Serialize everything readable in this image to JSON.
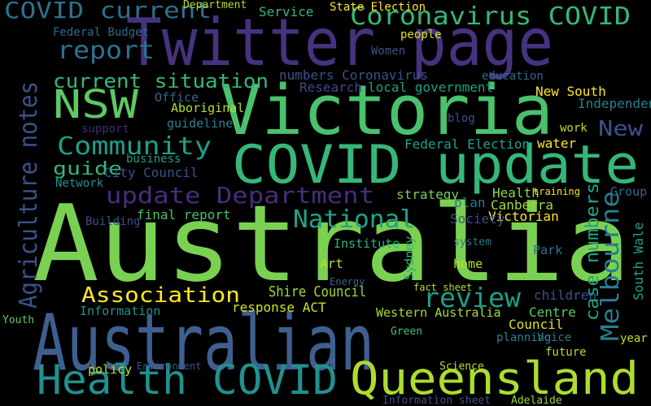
{
  "chart_data": {
    "type": "wordcloud",
    "background": "#000000",
    "words": [
      {
        "text": "Australia",
        "color": "#7ad151"
      },
      {
        "text": "Australian",
        "color": "#3e5f8f"
      },
      {
        "text": "Twitter page",
        "color": "#46327e"
      },
      {
        "text": "Victoria",
        "color": "#4ac16d"
      },
      {
        "text": "COVID update",
        "color": "#35b779"
      },
      {
        "text": "Health COVID",
        "color": "#21918c"
      },
      {
        "text": "Queensland",
        "color": "#addc30"
      },
      {
        "text": "Coronavirus COVID",
        "color": "#35b779"
      },
      {
        "text": "COVID current",
        "color": "#2c728e"
      },
      {
        "text": "report",
        "color": "#2c728e"
      },
      {
        "text": "NSW",
        "color": "#5ec962"
      },
      {
        "text": "current situation",
        "color": "#35b779"
      },
      {
        "text": "Community",
        "color": "#1f9e89"
      },
      {
        "text": "guide",
        "color": "#35b779"
      },
      {
        "text": "update Department",
        "color": "#472d7b"
      },
      {
        "text": "Agriculture notes",
        "color": "#3b528b"
      },
      {
        "text": "National",
        "color": "#20a386"
      },
      {
        "text": "review",
        "color": "#1f9e89"
      },
      {
        "text": "Association",
        "color": "#fde725"
      },
      {
        "text": "Melbourne",
        "color": "#277f8e"
      },
      {
        "text": "case numbers",
        "color": "#20a386"
      },
      {
        "text": "New",
        "color": "#3b528b"
      },
      {
        "text": "South Wale",
        "color": "#1f9e89"
      },
      {
        "text": "Shire Council",
        "color": "#a0da39"
      },
      {
        "text": "Victorian",
        "color": "#fde725"
      },
      {
        "text": "Canberra",
        "color": "#a2da37"
      },
      {
        "text": "Health",
        "color": "#93d741"
      },
      {
        "text": "Society",
        "color": "#3b528b"
      },
      {
        "text": "plan",
        "color": "#2a788e"
      },
      {
        "text": "strategy",
        "color": "#7ad151"
      },
      {
        "text": "Federal Election",
        "color": "#1fa187"
      },
      {
        "text": "water",
        "color": "#fde725"
      },
      {
        "text": "work",
        "color": "#bddf26"
      },
      {
        "text": "Independent",
        "color": "#277f8e"
      },
      {
        "text": "New South",
        "color": "#fde725"
      },
      {
        "text": "education",
        "color": "#31688e"
      },
      {
        "text": "local government",
        "color": "#1f9e89"
      },
      {
        "text": "numbers Coronavirus",
        "color": "#3b528b"
      },
      {
        "text": "Research",
        "color": "#3e4a89"
      },
      {
        "text": "Service",
        "color": "#35b779"
      },
      {
        "text": "Department",
        "color": "#b5de2b"
      },
      {
        "text": "State Election",
        "color": "#fde725"
      },
      {
        "text": "people",
        "color": "#d8e219"
      },
      {
        "text": "Women",
        "color": "#3b528b"
      },
      {
        "text": "Aboriginal",
        "color": "#b5de2b"
      },
      {
        "text": "guideline",
        "color": "#26828e"
      },
      {
        "text": "City Council",
        "color": "#3b528b"
      },
      {
        "text": "business",
        "color": "#1f9e89"
      },
      {
        "text": "final report",
        "color": "#4ac16d"
      },
      {
        "text": "Building",
        "color": "#3e4a89"
      },
      {
        "text": "Federal Budget",
        "color": "#31688e"
      },
      {
        "text": "Network",
        "color": "#21918c"
      },
      {
        "text": "Information",
        "color": "#21918c"
      },
      {
        "text": "policy",
        "color": "#c2df23"
      },
      {
        "text": "Environment",
        "color": "#3b528b"
      },
      {
        "text": "response ACT",
        "color": "#d2e21b"
      },
      {
        "text": "Western Australia",
        "color": "#a8db34"
      },
      {
        "text": "Council",
        "color": "#d5e21a"
      },
      {
        "text": "Centre",
        "color": "#5ec962"
      },
      {
        "text": "planning",
        "color": "#26828e"
      },
      {
        "text": "Voice",
        "color": "#2a788e"
      },
      {
        "text": "future",
        "color": "#b2dd2d"
      },
      {
        "text": "children",
        "color": "#3b528b"
      },
      {
        "text": "Art",
        "color": "#b5de2b"
      },
      {
        "text": "Institute",
        "color": "#2fb47c"
      },
      {
        "text": "home",
        "color": "#bddf26"
      },
      {
        "text": "system",
        "color": "#2a788e"
      },
      {
        "text": "Park",
        "color": "#2a788e"
      },
      {
        "text": "fact sheet",
        "color": "#b5de2b"
      },
      {
        "text": "Science",
        "color": "#b8de29"
      },
      {
        "text": "Information sheet",
        "color": "#3b528b"
      },
      {
        "text": "Adelaide",
        "color": "#95d840"
      },
      {
        "text": "year",
        "color": "#bddf26"
      },
      {
        "text": "Group",
        "color": "#31688e"
      },
      {
        "text": "training",
        "color": "#fde725"
      },
      {
        "text": "blog",
        "color": "#3b528b"
      },
      {
        "text": "Office",
        "color": "#31688e"
      },
      {
        "text": "support",
        "color": "#482878"
      },
      {
        "text": "Youth",
        "color": "#5ec962"
      },
      {
        "text": "Green",
        "color": "#4ac16d"
      },
      {
        "text": "Energy",
        "color": "#31688e"
      },
      {
        "text": "Sydney",
        "color": "#2fb47c"
      }
    ]
  }
}
